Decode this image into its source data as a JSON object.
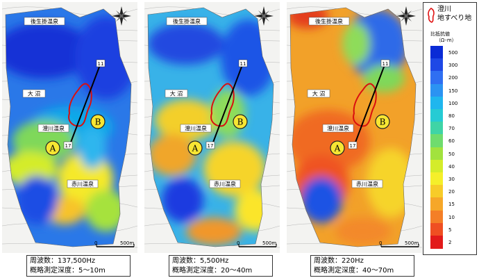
{
  "panels": [
    {
      "freq": "周波数：137,500Hz",
      "depth": "概略測定深度：5～10m",
      "scheme": "high"
    },
    {
      "freq": "周波数：5,500Hz",
      "depth": "概略測定深度：20～40m",
      "scheme": "mid"
    },
    {
      "freq": "周波数：220Hz",
      "depth": "概略測定深度：40～70m",
      "scheme": "low"
    }
  ],
  "map_labels": {
    "onsen_top": "後生掛温泉",
    "onuma": "大 沼",
    "sumikawa_onsen": "澄川温泉",
    "akagawa_onsen": "赤川温泉",
    "point_a": "A",
    "point_b": "B",
    "line_start": "17",
    "line_end": "11",
    "scale_zero": "0",
    "scale_end": "500m"
  },
  "legend": {
    "title_line1": "澄川",
    "title_line2": "地すべり地",
    "rho_label": "比抵抗値",
    "unit": "（Ω･m）",
    "entries": [
      {
        "value": "500",
        "color": "#0a2bd6"
      },
      {
        "value": "300",
        "color": "#1e48e6"
      },
      {
        "value": "200",
        "color": "#2f6ff2"
      },
      {
        "value": "150",
        "color": "#2b93f2"
      },
      {
        "value": "100",
        "color": "#1fb6ee"
      },
      {
        "value": "80",
        "color": "#26cbd4"
      },
      {
        "value": "70",
        "color": "#3fd4a6"
      },
      {
        "value": "60",
        "color": "#6fdc6e"
      },
      {
        "value": "50",
        "color": "#a2e23e"
      },
      {
        "value": "40",
        "color": "#d4ec2a"
      },
      {
        "value": "30",
        "color": "#f5ef2a"
      },
      {
        "value": "20",
        "color": "#f7cc29"
      },
      {
        "value": "15",
        "color": "#f6a729"
      },
      {
        "value": "10",
        "color": "#f47f27"
      },
      {
        "value": "5",
        "color": "#ef4f22"
      },
      {
        "value": "2",
        "color": "#e21a1a"
      }
    ]
  }
}
